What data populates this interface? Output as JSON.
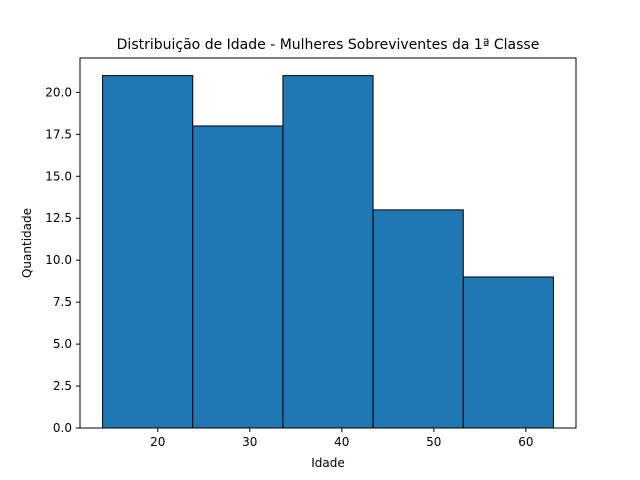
{
  "chart_data": {
    "type": "bar",
    "title": "Distribuição de Idade - Mulheres Sobreviventes da 1ª Classe",
    "xlabel": "Idade",
    "ylabel": "Quantidade",
    "bins": [
      {
        "x0": 14.0,
        "x1": 23.8,
        "value": 21
      },
      {
        "x0": 23.8,
        "x1": 33.6,
        "value": 18
      },
      {
        "x0": 33.6,
        "x1": 43.4,
        "value": 21
      },
      {
        "x0": 43.4,
        "x1": 53.2,
        "value": 13
      },
      {
        "x0": 53.2,
        "x1": 63.0,
        "value": 9
      }
    ],
    "xlim": [
      11.55,
      65.45
    ],
    "ylim": [
      0,
      22.05
    ],
    "xticks": [
      20,
      30,
      40,
      50,
      60
    ],
    "xtick_labels": [
      "20",
      "30",
      "40",
      "50",
      "60"
    ],
    "yticks": [
      0,
      2.5,
      5,
      7.5,
      10,
      12.5,
      15,
      17.5,
      20
    ],
    "ytick_labels": [
      "0.0",
      "2.5",
      "5.0",
      "7.5",
      "10.0",
      "12.5",
      "15.0",
      "17.5",
      "20.0"
    ],
    "bar_color": "#1f77b4",
    "edge_color": "#000000",
    "grid": false,
    "legend": "none"
  }
}
